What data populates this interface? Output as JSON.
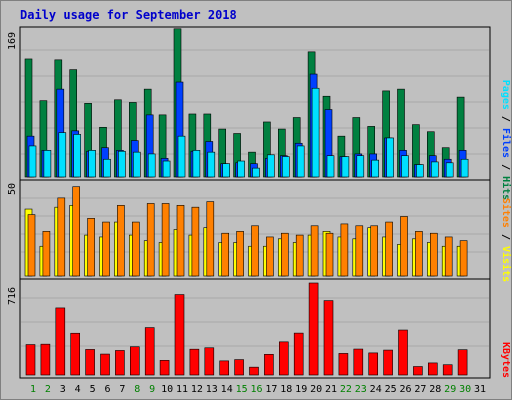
{
  "title": "Daily usage for September 2018",
  "colors": {
    "background": "#C0C0C0",
    "hits": "#008040",
    "files": "#0040FF",
    "pages": "#00E0FF",
    "visits": "#FFFF00",
    "sites": "#FF8000",
    "kbytes": "#FF0000",
    "weekend_label": "#008000",
    "weekday_label": "#000000"
  },
  "chart_data": [
    {
      "type": "bar",
      "panel": "top",
      "ymax_label": "169",
      "ylim": [
        0,
        169
      ],
      "categories": [
        "1",
        "2",
        "3",
        "4",
        "5",
        "6",
        "7",
        "8",
        "9",
        "10",
        "11",
        "12",
        "13",
        "14",
        "15",
        "16",
        "17",
        "18",
        "19",
        "20",
        "21",
        "22",
        "23",
        "24",
        "25",
        "26",
        "27",
        "28",
        "29",
        "30",
        "31"
      ],
      "series": [
        {
          "name": "Hits",
          "values": [
            133,
            86,
            132,
            121,
            83,
            56,
            87,
            84,
            99,
            70,
            167,
            71,
            71,
            54,
            49,
            28,
            62,
            54,
            67,
            141,
            91,
            46,
            67,
            57,
            97,
            99,
            59,
            51,
            33,
            90,
            0
          ]
        },
        {
          "name": "Files",
          "values": [
            46,
            30,
            99,
            52,
            29,
            33,
            30,
            41,
            70,
            21,
            107,
            29,
            40,
            15,
            16,
            15,
            21,
            24,
            38,
            116,
            76,
            23,
            26,
            26,
            44,
            30,
            14,
            24,
            20,
            30,
            0
          ]
        },
        {
          "name": "Pages",
          "values": [
            35,
            30,
            50,
            48,
            30,
            20,
            29,
            28,
            26,
            18,
            46,
            30,
            28,
            15,
            18,
            10,
            25,
            23,
            35,
            100,
            24,
            23,
            24,
            19,
            44,
            24,
            14,
            17,
            16,
            20,
            0
          ]
        }
      ],
      "right_labels": [
        "Pages",
        "Files",
        "Hits"
      ]
    },
    {
      "type": "bar",
      "panel": "middle",
      "ymax_label": "50",
      "ylim": [
        0,
        50
      ],
      "categories": [
        "1",
        "2",
        "3",
        "4",
        "5",
        "6",
        "7",
        "8",
        "9",
        "10",
        "11",
        "12",
        "13",
        "14",
        "15",
        "16",
        "17",
        "18",
        "19",
        "20",
        "21",
        "22",
        "23",
        "24",
        "25",
        "26",
        "27",
        "28",
        "29",
        "30",
        "31"
      ],
      "series": [
        {
          "name": "Visits",
          "values": [
            36,
            16,
            37,
            38,
            22,
            21,
            29,
            22,
            19,
            18,
            25,
            22,
            26,
            18,
            18,
            16,
            16,
            20,
            18,
            22,
            24,
            21,
            20,
            26,
            21,
            17,
            20,
            18,
            16,
            16,
            0
          ]
        },
        {
          "name": "Sites",
          "values": [
            33,
            24,
            42,
            48,
            31,
            29,
            38,
            29,
            39,
            39,
            38,
            37,
            40,
            23,
            24,
            27,
            21,
            23,
            22,
            27,
            23,
            28,
            27,
            27,
            29,
            32,
            24,
            23,
            21,
            19,
            0
          ]
        }
      ],
      "right_labels": [
        "Sites",
        "Visits"
      ]
    },
    {
      "type": "bar",
      "panel": "bottom",
      "ymax_label": "716",
      "ylim": [
        0,
        716
      ],
      "categories": [
        "1",
        "2",
        "3",
        "4",
        "5",
        "6",
        "7",
        "8",
        "9",
        "10",
        "11",
        "12",
        "13",
        "14",
        "15",
        "16",
        "17",
        "18",
        "19",
        "20",
        "21",
        "22",
        "23",
        "24",
        "25",
        "26",
        "27",
        "28",
        "29",
        "30",
        "31"
      ],
      "series": [
        {
          "name": "KBytes",
          "values": [
            237,
            240,
            522,
            325,
            199,
            163,
            191,
            220,
            369,
            114,
            626,
            201,
            212,
            110,
            120,
            61,
            161,
            258,
            326,
            716,
            579,
            168,
            202,
            172,
            194,
            350,
            66,
            94,
            80,
            197,
            0
          ]
        }
      ],
      "right_labels": [
        "KBytes"
      ]
    }
  ],
  "x_label_green_days": [
    "1",
    "2",
    "8",
    "9",
    "15",
    "16",
    "22",
    "23",
    "29",
    "30"
  ]
}
